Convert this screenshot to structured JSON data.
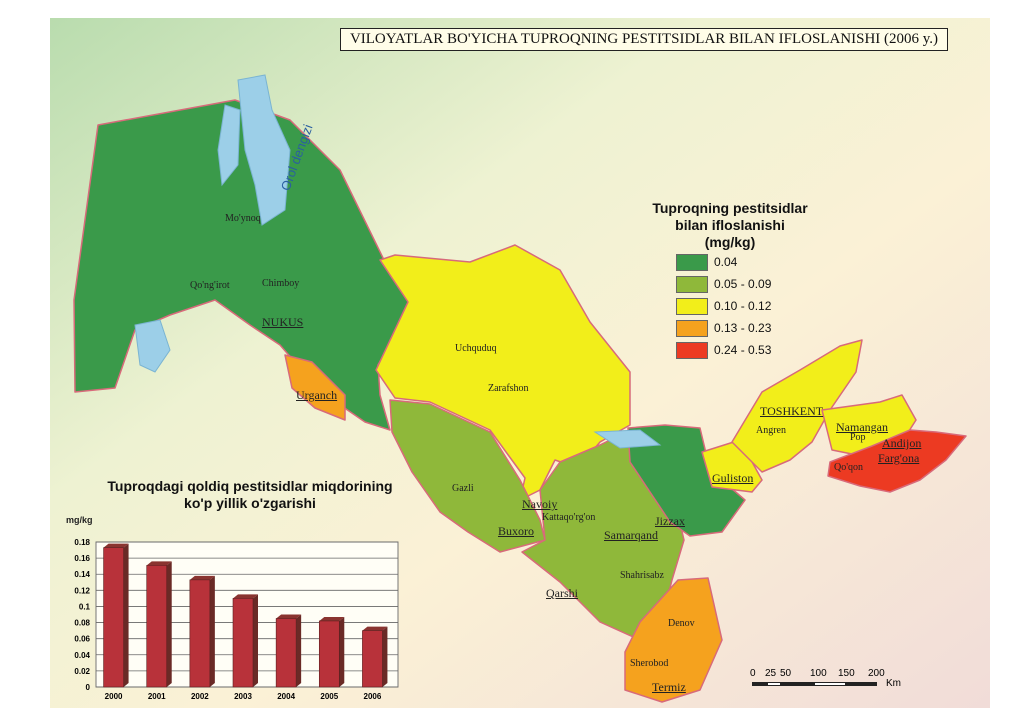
{
  "title": "VILOYATLAR BO'YICHA TUPROQNING PESTITSIDLAR BILAN IFLOSLANISHI (2006 y.)",
  "legend": {
    "title_lines": [
      "Tuproqning pestitsidlar",
      "bilan ifloslanishi",
      "(mg/kg)"
    ],
    "items": [
      {
        "label": "0.04",
        "color": "#3a9a4a"
      },
      {
        "label": "0.05 - 0.09",
        "color": "#8fb83a"
      },
      {
        "label": "0.10 - 0.12",
        "color": "#f2ee1a"
      },
      {
        "label": "0.13 - 0.23",
        "color": "#f5a21e"
      },
      {
        "label": "0.24 - 0.53",
        "color": "#ec3a22"
      }
    ]
  },
  "map": {
    "sea_label_lines": [
      "Orol",
      "dengizi"
    ],
    "cities": [
      {
        "name": "Mo'ynoq",
        "big": false
      },
      {
        "name": "Qo'ng'irot",
        "big": false
      },
      {
        "name": "Chimboy",
        "big": false
      },
      {
        "name": "NUKUS",
        "big": true
      },
      {
        "name": "Urganch",
        "big": true
      },
      {
        "name": "Uchquduq",
        "big": false
      },
      {
        "name": "Zarafshon",
        "big": false
      },
      {
        "name": "Gazli",
        "big": false
      },
      {
        "name": "Navoiy",
        "big": true
      },
      {
        "name": "Buxoro",
        "big": true
      },
      {
        "name": "Kattaqo'rg'on",
        "big": false
      },
      {
        "name": "Samarqand",
        "big": true
      },
      {
        "name": "Shahrisabz",
        "big": false
      },
      {
        "name": "Qarshi",
        "big": true
      },
      {
        "name": "Jizzax",
        "big": true
      },
      {
        "name": "Guliston",
        "big": true
      },
      {
        "name": "TOSHKENT",
        "big": true
      },
      {
        "name": "Angren",
        "big": false
      },
      {
        "name": "Namangan",
        "big": true
      },
      {
        "name": "Pop",
        "big": false
      },
      {
        "name": "Andijon",
        "big": true
      },
      {
        "name": "Farg'ona",
        "big": true
      },
      {
        "name": "Qo'qon",
        "big": false
      },
      {
        "name": "Denov",
        "big": false
      },
      {
        "name": "Sherobod",
        "big": false
      },
      {
        "name": "Termiz",
        "big": true
      }
    ],
    "scale": {
      "ticks": [
        "0",
        "25",
        "50",
        "100",
        "150",
        "200"
      ],
      "unit": "Km"
    }
  },
  "chart_data": {
    "type": "bar",
    "title": "Tuproqdagi qoldiq pestitsidlar miqdorining ko'p yillik o'zgarishi",
    "title_lines": [
      "Tuproqdagi qoldiq pestitsidlar miqdorining",
      "ko'p yillik o'zgarishi"
    ],
    "ylabel": "mg/kg",
    "xlabel": "",
    "categories": [
      "2000",
      "2001",
      "2002",
      "2003",
      "2004",
      "2005",
      "2006"
    ],
    "values": [
      0.173,
      0.151,
      0.133,
      0.11,
      0.085,
      0.082,
      0.07
    ],
    "ylim": [
      0,
      0.18
    ],
    "yticks": [
      "0",
      "0.02",
      "0.04",
      "0.06",
      "0.08",
      "0.1",
      "0.12",
      "0.14",
      "0.16",
      "0.18"
    ],
    "grid": true,
    "bar_color": "#b8323a"
  }
}
